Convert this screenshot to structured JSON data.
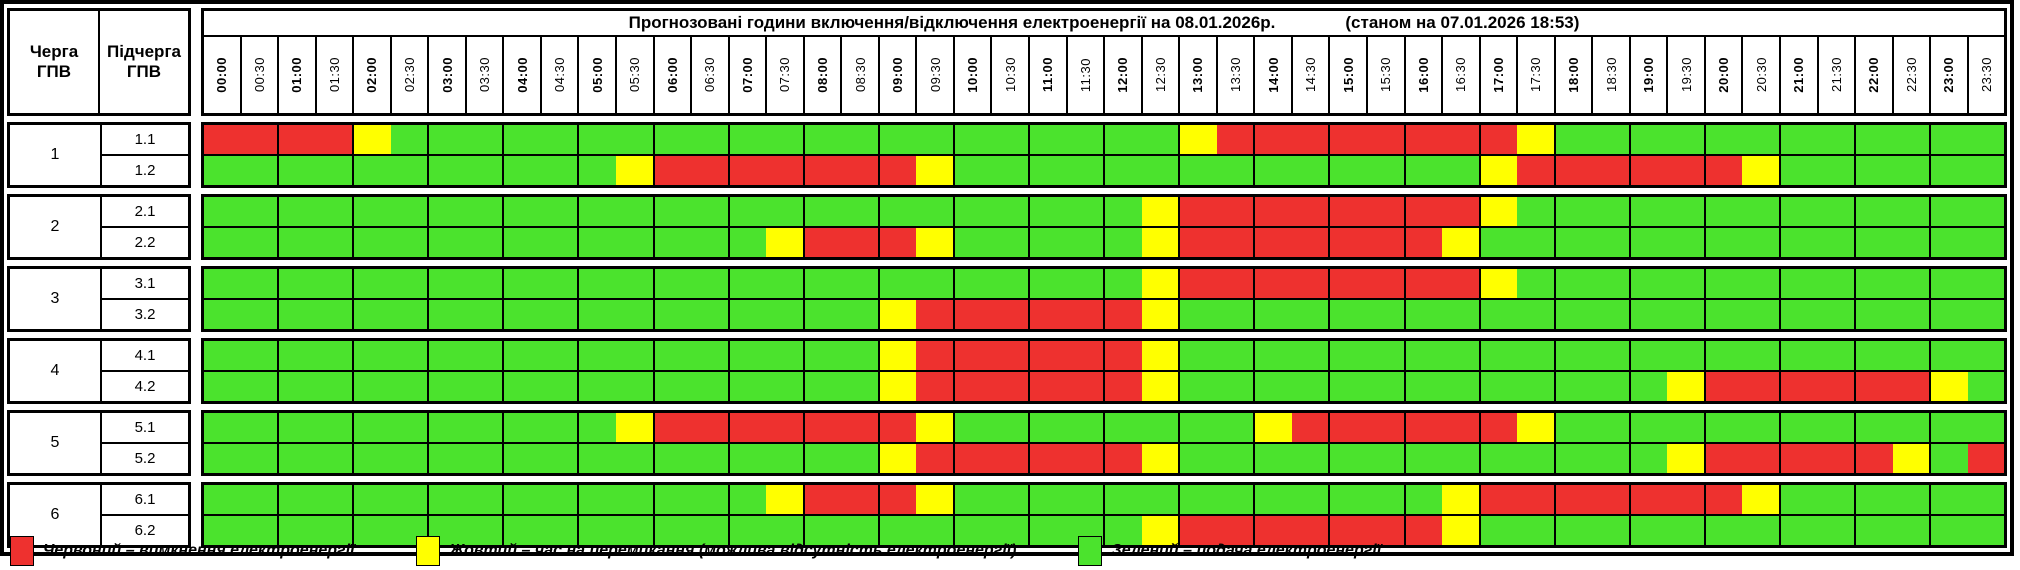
{
  "title": {
    "main": "Прогнозовані години включення/відключення електроенергії на 08.01.2026р.",
    "sub": "(станом на 07.01.2026 18:53)"
  },
  "left_header": {
    "col1": "Черга\nГПВ",
    "col2": "Підчерга\nГПВ"
  },
  "time_slots": [
    "00:00",
    "00:30",
    "01:00",
    "01:30",
    "02:00",
    "02:30",
    "03:00",
    "03:30",
    "04:00",
    "04:30",
    "05:00",
    "05:30",
    "06:00",
    "06:30",
    "07:00",
    "07:30",
    "08:00",
    "08:30",
    "09:00",
    "09:30",
    "10:00",
    "10:30",
    "11:00",
    "11:30",
    "12:00",
    "12:30",
    "13:00",
    "13:30",
    "14:00",
    "14:30",
    "15:00",
    "15:30",
    "16:00",
    "16:30",
    "17:00",
    "17:30",
    "18:00",
    "18:30",
    "19:00",
    "19:30",
    "20:00",
    "20:30",
    "21:00",
    "21:30",
    "22:00",
    "22:30",
    "23:00",
    "23:30"
  ],
  "colors": {
    "on": "#4be32d",
    "off": "#ee312f",
    "switch": "#ffff00"
  },
  "groups": [
    {
      "queue": "1",
      "rows": [
        {
          "label": "1.1",
          "slots": "rrrrygggggggggggggggggggggyrrrrrrrryggggggggggggg"
        },
        {
          "label": "1.2",
          "slots": "gggggggggggyrrrrrrryggggggggggggggyrrrrrryggggggg"
        }
      ]
    },
    {
      "queue": "2",
      "rows": [
        {
          "label": "2.1",
          "slots": "gggggggggggggggggggggggggyrrrrrrrryggggggggggggg"
        },
        {
          "label": "2.2",
          "slots": "gggggggggggggggyrrrygggggyrrrrrrrygggggggggggggg"
        }
      ]
    },
    {
      "queue": "3",
      "rows": [
        {
          "label": "3.1",
          "slots": "gggggggggggggggggggggggggyrrrrrrrryggggggggggggg"
        },
        {
          "label": "3.2",
          "slots": "ggggggggggggggggggyrrrrrrygggggggggggggggggggggg"
        }
      ]
    },
    {
      "queue": "4",
      "rows": [
        {
          "label": "4.1",
          "slots": "ggggggggggggggggggyrrrrrrygggggggggggggggggggggg"
        },
        {
          "label": "4.2",
          "slots": "ggggggggggggggggggyrrrrrrygggggggggggggyrrrrrryg"
        }
      ]
    },
    {
      "queue": "5",
      "rows": [
        {
          "label": "5.1",
          "slots": "gggggggggggyrrrrrrryggggggggyrrrrrrygggggggggggg"
        },
        {
          "label": "5.2",
          "slots": "ggggggggggggggggggyrrrrrrygggggggggggggyrrrrrygr"
        }
      ]
    },
    {
      "queue": "6",
      "rows": [
        {
          "label": "6.1",
          "slots": "gggggggggggggggyrrrygggggggggggggyrrrrrrryggggggg"
        },
        {
          "label": "6.2",
          "slots": "gggggggggggggggggggggggggyrrrrrrrygggggggggggggg"
        }
      ]
    }
  ],
  "legend": [
    {
      "color_key": "off",
      "label": "Червоний – вимкнення електроенергії"
    },
    {
      "color_key": "switch",
      "label": "Жовтий – час на перемикання (можлива відсутність електроенергії)"
    },
    {
      "color_key": "on",
      "label": "Зелений – подача електроенергії"
    }
  ]
}
